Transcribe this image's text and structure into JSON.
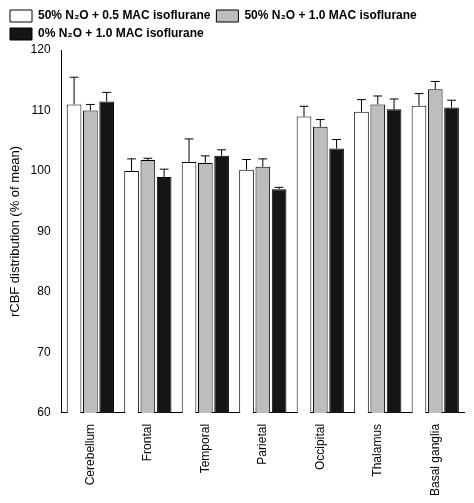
{
  "chart_data": {
    "type": "bar",
    "y_label": "rCBF distribution (% of mean)",
    "categories": [
      "Cerebellum",
      "Frontal",
      "Temporal",
      "Parietal",
      "Occipital",
      "Thalamus",
      "Basal ganglia"
    ],
    "series": [
      {
        "name": "50% N₂O + 0.5 MAC isoflurane",
        "color": "#ffffff",
        "values": [
          111,
          100,
          101.5,
          100.2,
          109,
          109.8,
          110.8
        ],
        "errors": [
          4.5,
          2,
          3.8,
          1.7,
          1.7,
          2,
          2
        ]
      },
      {
        "name": "50% N₂O + 1.0 MAC isoflurane",
        "color": "#bdbdbd",
        "values": [
          110,
          101.8,
          101.3,
          100.7,
          107.3,
          111,
          113.5
        ],
        "errors": [
          1,
          0.3,
          1.2,
          1.3,
          1.2,
          1.4,
          1.3
        ]
      },
      {
        "name": "0% N₂O + 1.0 MAC isoflurane",
        "color": "#151515",
        "values": [
          111.5,
          99,
          102.5,
          97,
          103.7,
          110.2,
          110.5
        ],
        "errors": [
          1.5,
          1.3,
          1,
          0.3,
          1.5,
          1.7,
          1.2
        ]
      }
    ],
    "ylim": [
      60,
      120
    ],
    "yticks": [
      60,
      70,
      80,
      90,
      100,
      110,
      120
    ],
    "grid": false,
    "legend": "top"
  }
}
